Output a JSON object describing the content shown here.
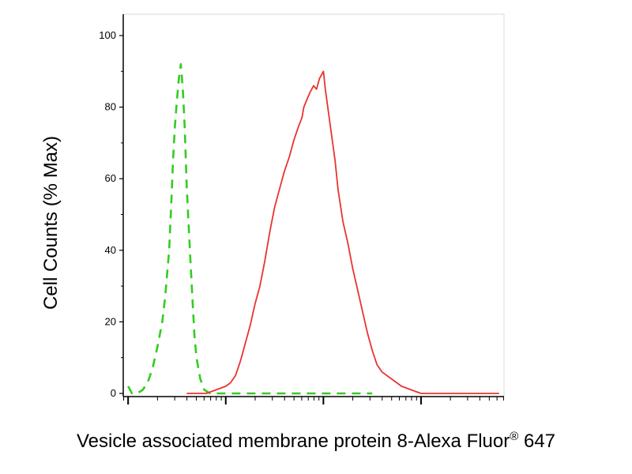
{
  "chart_data": {
    "type": "line",
    "xlabel": "Vesicle associated membrane protein 8-Alexa Fluor",
    "xlabel_superscript": "®",
    "xlabel_suffix": " 647",
    "ylabel": "Cell Counts (% Max)",
    "ylim": [
      0,
      100
    ],
    "y_ticks": [
      0,
      20,
      40,
      60,
      80,
      100
    ],
    "x_scale": "log",
    "x_tick_labels_shown": false,
    "grid": false,
    "series": [
      {
        "style": "dashed",
        "color": "#33cc22",
        "x": [
          0,
          0.04,
          0.09,
          0.15,
          0.2,
          0.25,
          0.3,
          0.35,
          0.38,
          0.42,
          0.44,
          0.46,
          0.48,
          0.5,
          0.52,
          0.54,
          0.56,
          0.58,
          0.6,
          0.62,
          0.64,
          0.66,
          0.68,
          0.7,
          0.74,
          0.78,
          0.84,
          0.9,
          1.0,
          1.5,
          2.0,
          2.5
        ],
        "y": [
          2,
          0,
          0,
          1,
          3,
          7,
          13,
          20,
          27,
          40,
          52,
          65,
          75,
          82,
          88,
          92,
          85,
          74,
          58,
          47,
          36,
          26,
          16,
          10,
          4,
          1,
          0,
          0,
          0,
          0,
          0,
          0
        ]
      },
      {
        "style": "solid",
        "color": "#e8342f",
        "x": [
          0.6,
          0.8,
          0.9,
          1.0,
          1.05,
          1.1,
          1.15,
          1.2,
          1.25,
          1.3,
          1.35,
          1.4,
          1.45,
          1.5,
          1.55,
          1.6,
          1.65,
          1.7,
          1.75,
          1.78,
          1.8,
          1.83,
          1.86,
          1.9,
          1.93,
          1.96,
          2.0,
          2.02,
          2.05,
          2.08,
          2.12,
          2.15,
          2.2,
          2.25,
          2.3,
          2.35,
          2.4,
          2.45,
          2.5,
          2.55,
          2.6,
          2.7,
          2.8,
          2.9,
          3.0,
          3.1,
          3.2,
          3.3,
          3.5,
          3.8
        ],
        "y": [
          0,
          0,
          1,
          2,
          3,
          5,
          9,
          14,
          19,
          25,
          30,
          37,
          45,
          52,
          57,
          62,
          66,
          71,
          75,
          77,
          80,
          82,
          84,
          86,
          85,
          88,
          90,
          85,
          79,
          73,
          65,
          57,
          48,
          42,
          35,
          29,
          23,
          17,
          12,
          8,
          6,
          4,
          2,
          1,
          0,
          0,
          0,
          0,
          0,
          0
        ]
      }
    ]
  }
}
